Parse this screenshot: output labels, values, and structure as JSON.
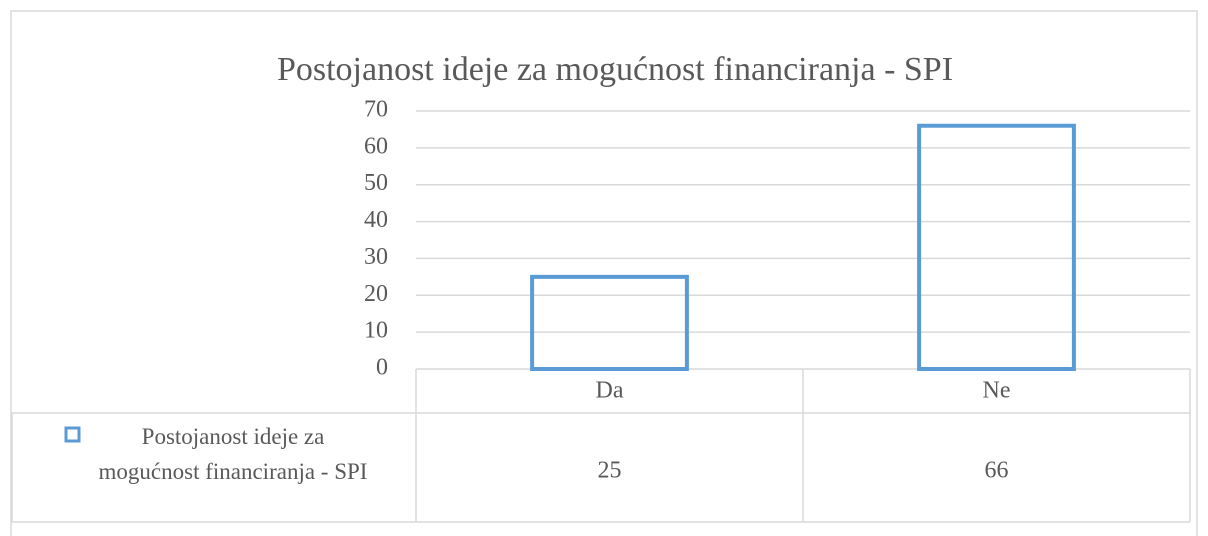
{
  "chart_data": {
    "type": "bar",
    "title": "Postojanost ideje za mogućnost financiranja - SPI",
    "categories": [
      "Da",
      "Ne"
    ],
    "series": [
      {
        "name": "Postojanost ideje za mogućnost financiranja - SPI",
        "color": "#5b9bd5",
        "values": [
          25,
          66
        ]
      }
    ],
    "ylim": [
      0,
      70
    ],
    "yticks": [
      0,
      10,
      20,
      30,
      40,
      50,
      60,
      70
    ],
    "grid": true,
    "legend": "data-table"
  }
}
